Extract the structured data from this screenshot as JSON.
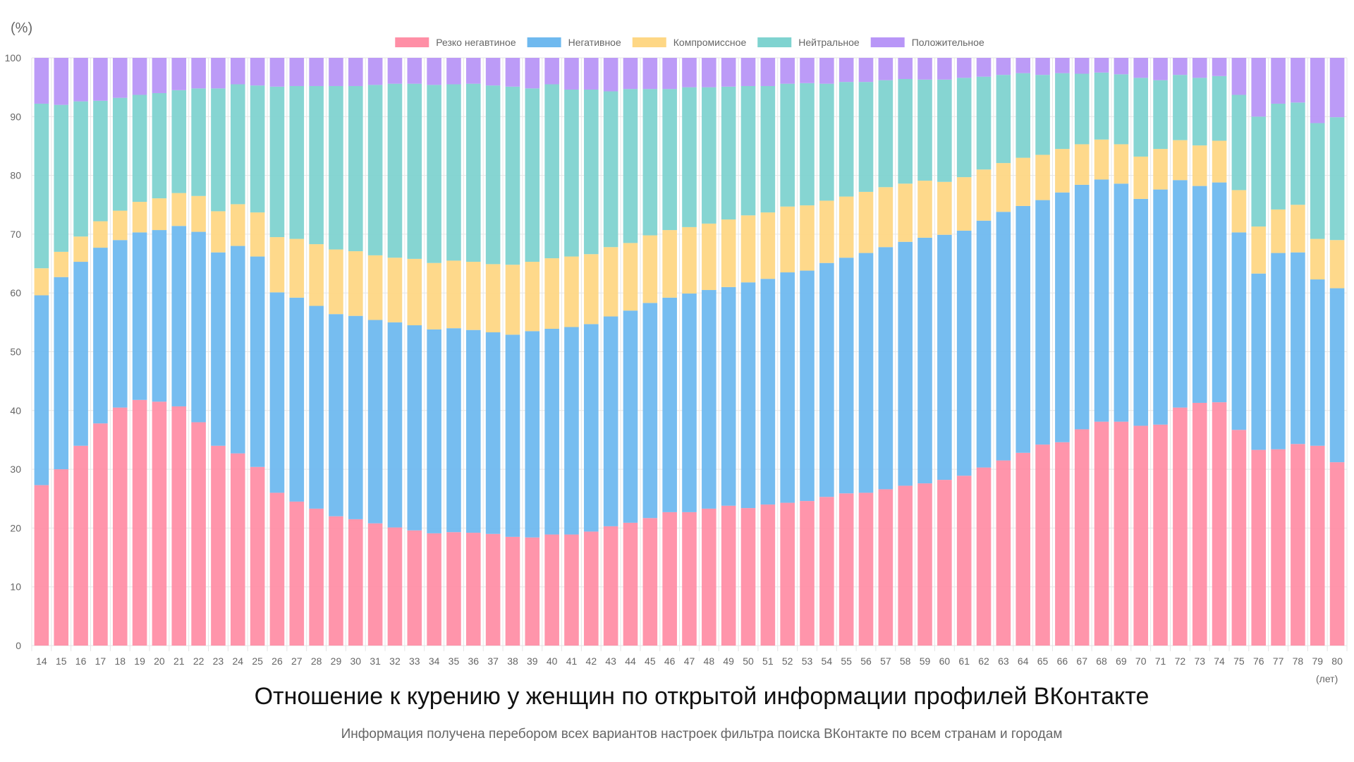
{
  "chart_data": {
    "type": "bar",
    "stacked": true,
    "title": "Отношение к курению у женщин по открытой информации профилей ВКонтакте",
    "subtitle": "Информация получена перебором всех вариантов настроек фильтра поиска ВКонтакте по всем странам и городам",
    "y_unit_label": "(%)",
    "x_unit_label": "(лет)",
    "ylim": [
      0,
      100
    ],
    "y_ticks": [
      0,
      10,
      20,
      30,
      40,
      50,
      60,
      70,
      80,
      90,
      100
    ],
    "legend_position": "top",
    "grid": true,
    "categories": [
      "14",
      "15",
      "16",
      "17",
      "18",
      "19",
      "20",
      "21",
      "22",
      "23",
      "24",
      "25",
      "26",
      "27",
      "28",
      "29",
      "30",
      "31",
      "32",
      "33",
      "34",
      "35",
      "36",
      "37",
      "38",
      "39",
      "40",
      "41",
      "42",
      "43",
      "44",
      "45",
      "46",
      "47",
      "48",
      "49",
      "50",
      "51",
      "52",
      "53",
      "54",
      "55",
      "56",
      "57",
      "58",
      "59",
      "60",
      "61",
      "62",
      "63",
      "64",
      "65",
      "66",
      "67",
      "68",
      "69",
      "70",
      "71",
      "72",
      "73",
      "74",
      "75",
      "76",
      "77",
      "78",
      "79",
      "80"
    ],
    "series": [
      {
        "name": "Резко негавтиное",
        "color": "#ff8fa6",
        "values": [
          27.3,
          30.0,
          34.0,
          37.8,
          40.5,
          41.8,
          41.5,
          40.7,
          38.0,
          34.0,
          32.7,
          30.4,
          26.0,
          24.5,
          23.3,
          22.0,
          21.5,
          20.8,
          20.1,
          19.6,
          19.1,
          19.3,
          19.2,
          19.0,
          18.5,
          18.4,
          18.9,
          18.9,
          19.4,
          20.3,
          20.9,
          21.7,
          22.7,
          22.7,
          23.3,
          23.8,
          23.4,
          24.0,
          24.3,
          24.6,
          25.3,
          25.9,
          26.0,
          26.6,
          27.2,
          27.6,
          28.2,
          28.9,
          30.3,
          31.5,
          32.8,
          34.2,
          34.6,
          36.8,
          38.1,
          38.1,
          37.4,
          37.6,
          40.5,
          41.3,
          41.4,
          36.7,
          33.3,
          33.4,
          34.3,
          34.0,
          31.2
        ]
      },
      {
        "name": "Негативное",
        "color": "#6fb9ef",
        "values": [
          32.3,
          32.7,
          31.3,
          29.9,
          28.5,
          28.5,
          29.2,
          30.7,
          32.4,
          32.9,
          35.3,
          35.8,
          34.1,
          34.7,
          34.5,
          34.4,
          34.6,
          34.6,
          34.9,
          34.9,
          34.7,
          34.7,
          34.5,
          34.3,
          34.4,
          35.1,
          35.0,
          35.3,
          35.3,
          35.7,
          36.1,
          36.6,
          36.5,
          37.2,
          37.2,
          37.2,
          38.4,
          38.4,
          39.2,
          39.2,
          39.8,
          40.1,
          40.8,
          41.2,
          41.5,
          41.8,
          41.7,
          41.7,
          42.0,
          42.3,
          42.0,
          41.6,
          42.5,
          41.6,
          41.2,
          40.5,
          38.6,
          40.0,
          38.7,
          36.9,
          37.4,
          33.6,
          30.0,
          33.4,
          32.6,
          28.3,
          29.6
        ]
      },
      {
        "name": "Компромиссное",
        "color": "#fed785",
        "values": [
          4.6,
          4.3,
          4.3,
          4.5,
          5.0,
          5.2,
          5.4,
          5.6,
          6.1,
          7.0,
          7.1,
          7.5,
          9.4,
          10.0,
          10.5,
          11.0,
          11.0,
          11.0,
          11.0,
          11.3,
          11.3,
          11.5,
          11.6,
          11.6,
          11.9,
          11.8,
          12.0,
          12.0,
          11.9,
          11.8,
          11.5,
          11.5,
          11.5,
          11.3,
          11.3,
          11.5,
          11.4,
          11.3,
          11.2,
          11.1,
          10.6,
          10.4,
          10.4,
          10.2,
          9.9,
          9.7,
          9.0,
          9.1,
          8.7,
          8.3,
          8.2,
          7.7,
          7.4,
          6.9,
          6.8,
          6.7,
          7.2,
          6.9,
          6.8,
          6.9,
          7.1,
          7.2,
          8.0,
          7.4,
          8.1,
          6.9,
          8.2
        ]
      },
      {
        "name": "Нейтральное",
        "color": "#7fd3d0",
        "values": [
          28.0,
          25.0,
          23.0,
          20.5,
          19.2,
          18.2,
          17.9,
          17.5,
          18.3,
          20.9,
          20.4,
          21.6,
          25.6,
          26.0,
          26.9,
          27.8,
          28.1,
          29.0,
          29.6,
          29.8,
          30.3,
          30.0,
          30.3,
          30.4,
          30.3,
          29.5,
          29.6,
          28.4,
          28.0,
          26.5,
          26.2,
          24.9,
          24.0,
          23.8,
          23.2,
          22.6,
          22.0,
          21.5,
          20.9,
          20.8,
          19.9,
          19.5,
          18.7,
          18.2,
          17.8,
          17.2,
          17.4,
          16.9,
          15.8,
          15.0,
          14.4,
          13.6,
          12.9,
          12.0,
          11.4,
          11.9,
          13.4,
          11.7,
          11.1,
          11.5,
          11.0,
          16.2,
          18.7,
          18.0,
          17.4,
          19.7,
          20.9
        ]
      },
      {
        "name": "Положительное",
        "color": "#b896f7",
        "values": [
          7.8,
          8.0,
          7.4,
          7.3,
          6.8,
          6.3,
          6.0,
          5.5,
          5.2,
          5.2,
          4.5,
          4.7,
          4.9,
          4.8,
          4.8,
          4.8,
          4.8,
          4.6,
          4.4,
          4.4,
          4.6,
          4.5,
          4.4,
          4.7,
          4.9,
          5.2,
          4.5,
          5.4,
          5.4,
          5.7,
          5.3,
          5.3,
          5.3,
          5.0,
          5.0,
          4.9,
          4.8,
          4.8,
          4.4,
          4.3,
          4.4,
          4.1,
          4.1,
          3.8,
          3.6,
          3.7,
          3.7,
          3.4,
          3.2,
          2.9,
          2.6,
          2.9,
          2.6,
          2.7,
          2.5,
          2.8,
          3.4,
          3.8,
          2.9,
          3.4,
          3.1,
          6.3,
          10.0,
          7.8,
          7.6,
          11.1,
          10.1
        ]
      }
    ]
  }
}
